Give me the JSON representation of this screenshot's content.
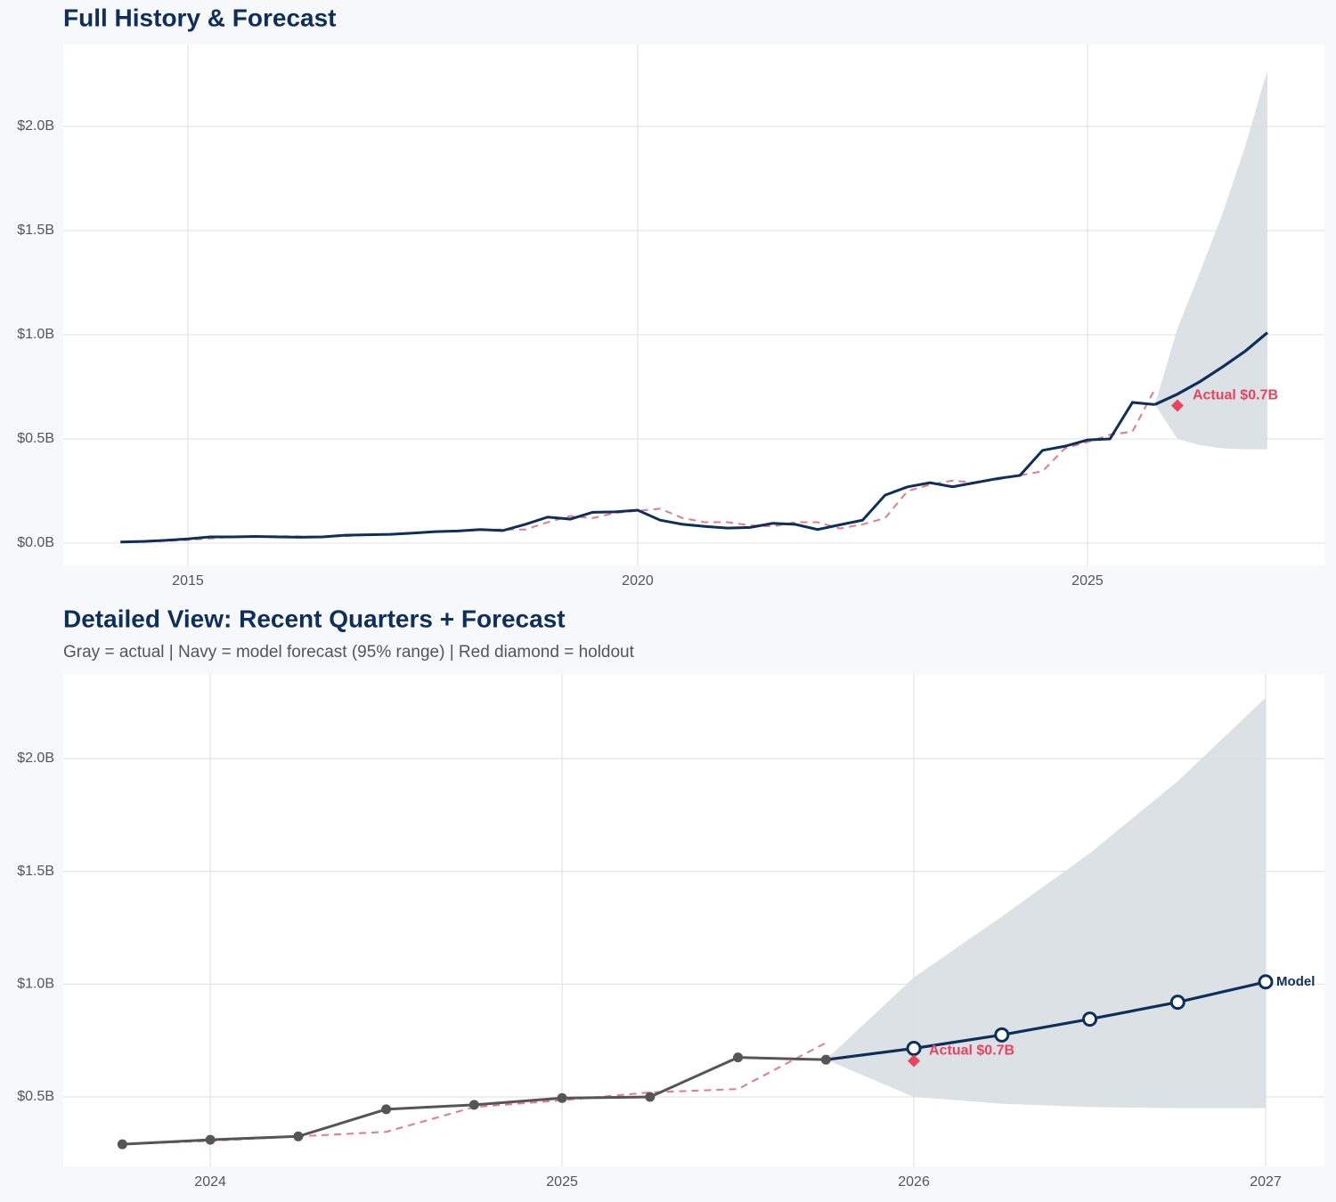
{
  "chart_data": [
    {
      "type": "line",
      "title": "Full History & Forecast",
      "xlim": [
        2013.614,
        2027.634
      ],
      "xticks": [
        2015,
        2020,
        2025
      ],
      "ylim": [
        -0.107,
        2.393
      ],
      "yticks": [
        {
          "value": 0,
          "label": "$0.0B"
        },
        {
          "value": 0.5,
          "label": "$0.5B"
        },
        {
          "value": 1,
          "label": "$1.0B"
        },
        {
          "value": 1.5,
          "label": "$1.5B"
        },
        {
          "value": 2,
          "label": "$2.0B"
        }
      ],
      "grid": true,
      "series": [
        {
          "color": "#0d2f5a",
          "markers": false,
          "x": [
            2014.25,
            2014.5,
            2014.75,
            2015,
            2015.25,
            2015.5,
            2015.75,
            2016,
            2016.25,
            2016.5,
            2016.75,
            2017,
            2017.25,
            2017.5,
            2017.75,
            2018,
            2018.25,
            2018.5,
            2018.75,
            2019,
            2019.25,
            2019.5,
            2019.75,
            2020,
            2020.25,
            2020.5,
            2020.75,
            2021,
            2021.25,
            2021.5,
            2021.75,
            2022,
            2022.25,
            2022.5,
            2022.75,
            2023,
            2023.25,
            2023.5,
            2023.75,
            2024,
            2024.25,
            2024.5,
            2024.75,
            2025,
            2025.25,
            2025.5,
            2025.75
          ],
          "values": [
            0.005,
            0.008,
            0.013,
            0.02,
            0.03,
            0.03,
            0.032,
            0.03,
            0.028,
            0.03,
            0.038,
            0.04,
            0.042,
            0.048,
            0.055,
            0.058,
            0.065,
            0.06,
            0.09,
            0.125,
            0.115,
            0.148,
            0.15,
            0.158,
            0.11,
            0.09,
            0.08,
            0.072,
            0.075,
            0.095,
            0.09,
            0.065,
            0.088,
            0.11,
            0.23,
            0.27,
            0.29,
            0.27,
            0.29,
            0.31,
            0.325,
            0.445,
            0.465,
            0.495,
            0.5,
            0.675,
            0.665
          ]
        },
        {
          "color": "#e8788a",
          "dashed": true,
          "x": [
            2014.25,
            2014.5,
            2014.75,
            2015,
            2015.25,
            2015.5,
            2015.75,
            2016,
            2016.25,
            2016.5,
            2016.75,
            2017,
            2017.25,
            2017.5,
            2017.75,
            2018,
            2018.25,
            2018.5,
            2018.75,
            2019,
            2019.25,
            2019.5,
            2019.75,
            2020,
            2020.25,
            2020.5,
            2020.75,
            2021,
            2021.25,
            2021.5,
            2021.75,
            2022,
            2022.25,
            2022.5,
            2022.75,
            2023,
            2023.25,
            2023.5,
            2023.75,
            2024,
            2024.25,
            2024.5,
            2024.75,
            2025,
            2025.25,
            2025.5,
            2025.75
          ],
          "values": [
            0.005,
            0.007,
            0.01,
            0.015,
            0.022,
            0.03,
            0.031,
            0.033,
            0.032,
            0.03,
            0.033,
            0.04,
            0.042,
            0.047,
            0.055,
            0.058,
            0.063,
            0.065,
            0.065,
            0.1,
            0.13,
            0.12,
            0.145,
            0.155,
            0.165,
            0.12,
            0.1,
            0.1,
            0.085,
            0.08,
            0.1,
            0.1,
            0.07,
            0.09,
            0.12,
            0.25,
            0.28,
            0.3,
            0.29,
            0.305,
            0.325,
            0.345,
            0.455,
            0.485,
            0.52,
            0.535,
            0.74
          ]
        }
      ],
      "forecast": {
        "color": "#0d2f5a",
        "band_color": "#dadfe5",
        "markers": false,
        "x": [
          2025.75,
          2026,
          2026.25,
          2026.5,
          2026.75,
          2027
        ],
        "values": [
          0.665,
          0.715,
          0.775,
          0.845,
          0.92,
          1.01
        ],
        "lower": [
          0.665,
          0.5,
          0.47,
          0.455,
          0.45,
          0.45
        ],
        "upper": [
          0.665,
          1.03,
          1.3,
          1.58,
          1.9,
          2.27
        ]
      },
      "holdout": {
        "x": 2026,
        "value": 0.66,
        "label": "Actual $0.7B",
        "color": "#e8435f"
      }
    },
    {
      "type": "line",
      "title": "Detailed View: Recent Quarters + Forecast",
      "subtitle": "Gray = actual  |  Navy = model forecast (95% range)  |  Red diamond = holdout",
      "xlim": [
        2023.582,
        2027.167
      ],
      "xticks": [
        2024,
        2025,
        2026,
        2027
      ],
      "ylim": [
        0.192,
        2.375
      ],
      "yticks": [
        {
          "value": 0.5,
          "label": "$0.5B"
        },
        {
          "value": 1,
          "label": "$1.0B"
        },
        {
          "value": 1.5,
          "label": "$1.5B"
        },
        {
          "value": 2,
          "label": "$2.0B"
        }
      ],
      "grid": true,
      "series": [
        {
          "color": "#555555",
          "markers": true,
          "x": [
            2023.75,
            2024,
            2024.25,
            2024.5,
            2024.75,
            2025,
            2025.25,
            2025.5,
            2025.75
          ],
          "values": [
            0.29,
            0.31,
            0.325,
            0.445,
            0.465,
            0.495,
            0.5,
            0.675,
            0.665
          ]
        },
        {
          "color": "#e8788a",
          "dashed": true,
          "x": [
            2023.75,
            2024,
            2024.25,
            2024.5,
            2024.75,
            2025,
            2025.25,
            2025.5,
            2025.75
          ],
          "values": [
            0.29,
            0.305,
            0.325,
            0.345,
            0.455,
            0.485,
            0.52,
            0.535,
            0.74
          ]
        }
      ],
      "forecast": {
        "color": "#0d2f5a",
        "band_color": "#dadfe5",
        "markers": true,
        "label": "Model",
        "x": [
          2025.75,
          2026,
          2026.25,
          2026.5,
          2026.75,
          2027
        ],
        "values": [
          0.665,
          0.715,
          0.775,
          0.845,
          0.92,
          1.01
        ],
        "lower": [
          0.665,
          0.5,
          0.47,
          0.455,
          0.45,
          0.45
        ],
        "upper": [
          0.665,
          1.03,
          1.3,
          1.58,
          1.9,
          2.27
        ]
      },
      "holdout": {
        "x": 2026,
        "value": 0.66,
        "label": "Actual $0.7B",
        "color": "#e8435f"
      }
    }
  ]
}
